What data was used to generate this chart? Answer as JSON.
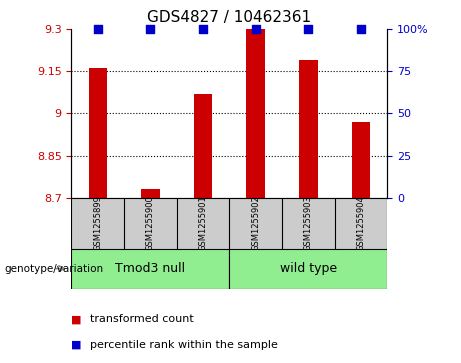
{
  "title": "GDS4827 / 10462361",
  "samples": [
    "GSM1255899",
    "GSM1255900",
    "GSM1255901",
    "GSM1255902",
    "GSM1255903",
    "GSM1255904"
  ],
  "red_values": [
    9.16,
    8.73,
    9.07,
    9.3,
    9.19,
    8.97
  ],
  "blue_values": [
    100,
    100,
    100,
    100,
    100,
    100
  ],
  "ylim_left": [
    8.7,
    9.3
  ],
  "ylim_right": [
    0,
    100
  ],
  "yticks_left": [
    8.7,
    8.85,
    9.0,
    9.15,
    9.3
  ],
  "yticks_right": [
    0,
    25,
    50,
    75,
    100
  ],
  "ytick_labels_left": [
    "8.7",
    "8.85",
    "9",
    "9.15",
    "9.3"
  ],
  "ytick_labels_right": [
    "0",
    "25",
    "50",
    "75",
    "100%"
  ],
  "groups": [
    {
      "label": "Tmod3 null",
      "indices": [
        0,
        1,
        2
      ],
      "color": "#90EE90"
    },
    {
      "label": "wild type",
      "indices": [
        3,
        4,
        5
      ],
      "color": "#90EE90"
    }
  ],
  "genotype_label": "genotype/variation",
  "legend_red": "transformed count",
  "legend_blue": "percentile rank within the sample",
  "bar_color": "#cc0000",
  "dot_color": "#0000cc",
  "bar_width": 0.35,
  "dot_size": 30,
  "grid_style": "dotted",
  "group_box_color": "#cccccc",
  "title_fontsize": 11,
  "tick_fontsize": 8,
  "axis_label_color_left": "#cc0000",
  "axis_label_color_right": "#0000cc",
  "sample_fontsize": 6,
  "group_fontsize": 9,
  "legend_fontsize": 8
}
